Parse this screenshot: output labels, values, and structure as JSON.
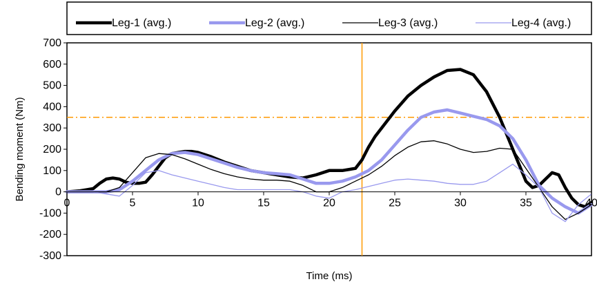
{
  "chart_data": {
    "type": "line",
    "title": "",
    "xlabel": "Time (ms)",
    "ylabel": "Bending moment (Nm)",
    "xlim": [
      0,
      40
    ],
    "ylim": [
      -300,
      700
    ],
    "xticks": [
      0,
      5,
      10,
      15,
      20,
      25,
      30,
      35,
      40
    ],
    "yticks": [
      -300,
      -200,
      -100,
      0,
      100,
      200,
      300,
      400,
      500,
      600,
      700
    ],
    "grid": false,
    "legend_position": "top",
    "series": [
      {
        "name": "Leg-1 (avg.)",
        "color": "#000000",
        "style": "thick",
        "x": [
          0,
          1,
          2,
          2.5,
          3,
          3.5,
          4,
          4.5,
          5,
          5.5,
          6,
          6.5,
          7,
          7.5,
          8,
          8.5,
          9,
          9.5,
          10,
          11,
          12,
          13,
          14,
          15,
          16,
          17,
          18,
          19,
          20,
          21,
          22,
          22.5,
          23,
          23.5,
          24,
          25,
          26,
          27,
          28,
          29,
          30,
          31,
          32,
          33,
          34,
          35,
          35.5,
          36,
          36.5,
          37,
          37.5,
          38,
          38.5,
          39,
          39.5,
          40
        ],
        "y": [
          0,
          5,
          15,
          40,
          60,
          65,
          60,
          45,
          40,
          40,
          45,
          80,
          120,
          160,
          180,
          185,
          190,
          190,
          185,
          165,
          140,
          120,
          100,
          90,
          80,
          70,
          65,
          80,
          100,
          100,
          110,
          150,
          210,
          260,
          300,
          380,
          450,
          500,
          540,
          570,
          575,
          550,
          470,
          350,
          200,
          50,
          20,
          30,
          60,
          90,
          80,
          20,
          -30,
          -60,
          -70,
          -50
        ]
      },
      {
        "name": "Leg-2 (avg.)",
        "color": "#9999ee",
        "style": "thick",
        "x": [
          0,
          2,
          3,
          4,
          5,
          6,
          7,
          8,
          9,
          10,
          11,
          12,
          13,
          14,
          15,
          16,
          17,
          18,
          19,
          20,
          21,
          22,
          23,
          24,
          25,
          26,
          27,
          28,
          29,
          30,
          31,
          32,
          33,
          34,
          35,
          36,
          37,
          38,
          39,
          40
        ],
        "y": [
          0,
          0,
          0,
          10,
          50,
          100,
          150,
          180,
          185,
          175,
          155,
          135,
          115,
          100,
          90,
          85,
          80,
          60,
          40,
          40,
          50,
          70,
          100,
          150,
          220,
          290,
          350,
          375,
          385,
          370,
          355,
          340,
          310,
          250,
          150,
          30,
          -30,
          -70,
          -100,
          -60
        ]
      },
      {
        "name": "Leg-3 (avg.)",
        "color": "#000000",
        "style": "thin",
        "x": [
          0,
          2,
          3,
          4,
          5,
          6,
          7,
          8,
          9,
          10,
          11,
          12,
          13,
          14,
          15,
          16,
          17,
          18,
          19,
          20,
          21,
          22,
          23,
          24,
          25,
          26,
          27,
          28,
          29,
          30,
          31,
          32,
          33,
          34,
          35,
          36,
          37,
          38,
          39,
          40
        ],
        "y": [
          0,
          0,
          0,
          20,
          90,
          160,
          180,
          175,
          155,
          130,
          105,
          85,
          70,
          60,
          55,
          55,
          50,
          30,
          0,
          0,
          20,
          50,
          80,
          120,
          170,
          210,
          235,
          240,
          225,
          200,
          185,
          190,
          205,
          200,
          110,
          20,
          -70,
          -130,
          -100,
          -60
        ]
      },
      {
        "name": "Leg-4 (avg.)",
        "color": "#9999ee",
        "style": "thin",
        "x": [
          0,
          2,
          3,
          4,
          5,
          6,
          7,
          8,
          9,
          10,
          11,
          12,
          13,
          14,
          15,
          16,
          17,
          18,
          19,
          20,
          21,
          22,
          23,
          24,
          25,
          26,
          27,
          28,
          29,
          30,
          31,
          32,
          33,
          34,
          35,
          36,
          37,
          38,
          39,
          40
        ],
        "y": [
          0,
          0,
          -10,
          -20,
          30,
          90,
          100,
          80,
          65,
          50,
          35,
          20,
          10,
          10,
          10,
          10,
          10,
          0,
          -20,
          -30,
          0,
          10,
          25,
          40,
          55,
          60,
          55,
          50,
          40,
          35,
          35,
          50,
          90,
          130,
          80,
          20,
          -100,
          -140,
          -60,
          -10
        ]
      }
    ],
    "reference_lines": [
      {
        "orientation": "vertical",
        "value": 22.5,
        "color": "#ff9900",
        "style": "solid"
      },
      {
        "orientation": "horizontal",
        "value": 350,
        "color": "#ff9900",
        "style": "dash-dot"
      }
    ]
  }
}
